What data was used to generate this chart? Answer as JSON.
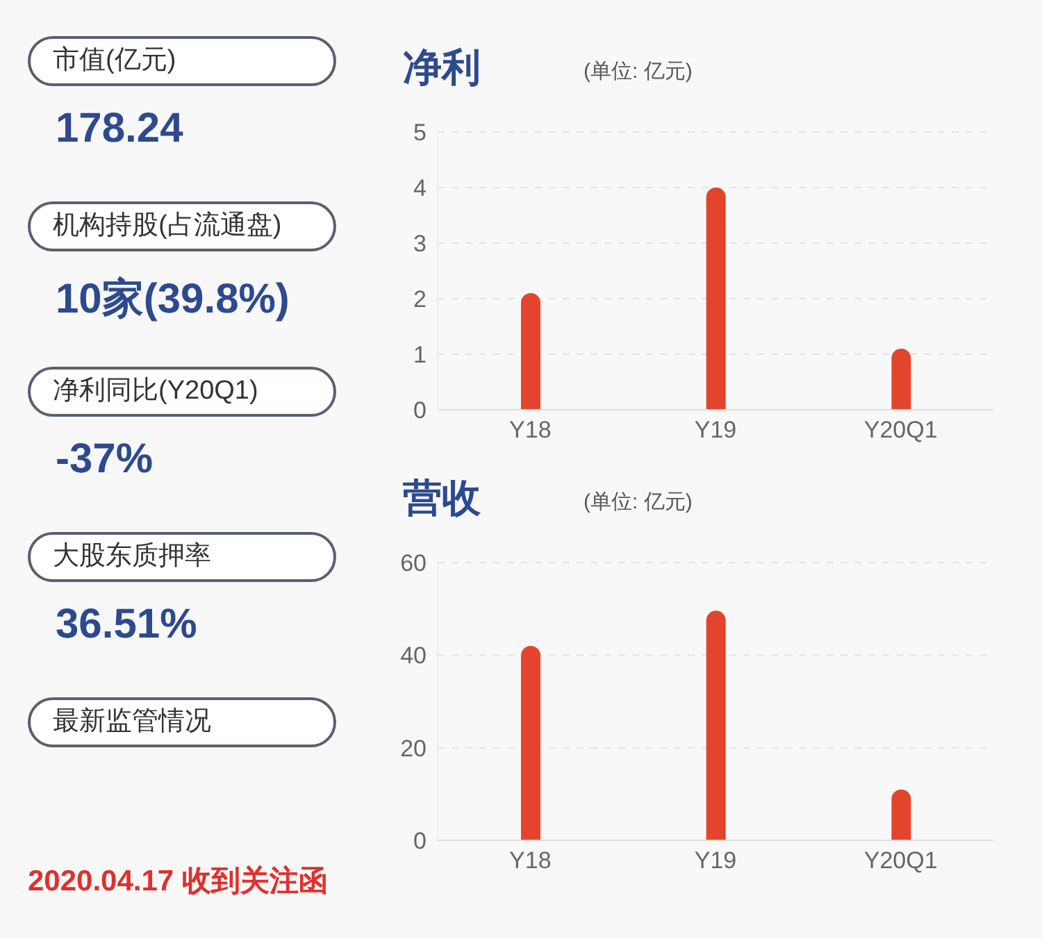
{
  "chart_data": [
    {
      "type": "other",
      "annotations": [
        "市值(亿元)",
        "178.24",
        "机构持股(占流通盘)",
        "10家(39.8%)",
        "净利同比(Y20Q1)",
        "-37%",
        "大股东质押率",
        "36.51%",
        "最新监管情况",
        "2020.04.17 收到关注函"
      ]
    },
    {
      "type": "bar",
      "title": "净利",
      "annotations": [
        "(单位: 亿元)"
      ],
      "categories": [
        "Y18",
        "Y19",
        "Y20Q1"
      ],
      "values": [
        2.1,
        4.0,
        1.1
      ],
      "color": "#e2452b",
      "ylim": [
        0,
        5
      ],
      "yticks": [
        0,
        1,
        2,
        3,
        4,
        5
      ],
      "grid": "y"
    },
    {
      "type": "bar",
      "title": "营收",
      "annotations": [
        "(单位: 亿元)"
      ],
      "categories": [
        "Y18",
        "Y19",
        "Y20Q1"
      ],
      "values": [
        42,
        49.6,
        11
      ],
      "color": "#e2452b",
      "ylim": [
        0,
        60
      ],
      "yticks": [
        0,
        20,
        40,
        60
      ],
      "grid": "y"
    }
  ]
}
